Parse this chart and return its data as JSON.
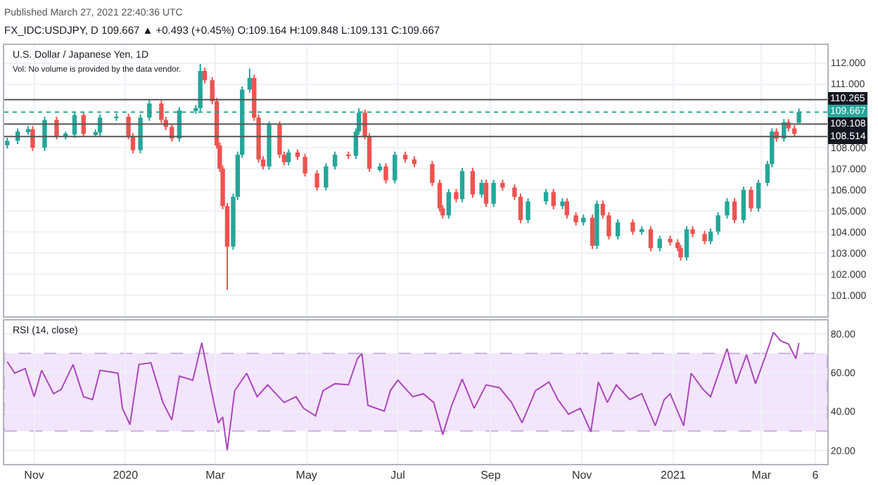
{
  "chart_data": [
    {
      "type": "candlestick",
      "title": "U.S. Dollar / Japanese Yen, 1D",
      "subtitle": "Vol: No volume is provided by the data vendor.",
      "annotations": [
        "Published March 27, 2021 22:40:36 UTC",
        "FX_IDC:USDJPY, D 109.667 ▲ +0.493 (+0.45%) O:109.164 H:109.848 L:109.131 C:109.667"
      ],
      "colors": [
        "#26a69a",
        "#26a69a",
        "#26a69a",
        "#ef5350",
        "#26a69a",
        "#ef5350",
        "#26a69a",
        "#26a69a",
        "#ef5350",
        "#26a69a",
        "#26a69a",
        "#26a69a",
        "#ef5350",
        "#ef5350",
        "#26a69a",
        "#26a69a",
        "#ef5350",
        "#ef5350",
        "#ef5350",
        "#26a69a",
        "#26a69a",
        "#26a69a",
        "#ef5350",
        "#ef5350",
        "#ef5350",
        "#ef5350",
        "#ef5350",
        "#ef5350",
        "#26a69a",
        "#26a69a",
        "#26a69a",
        "#26a69a",
        "#ef5350",
        "#ef5350",
        "#ef5350",
        "#26a69a",
        "#ef5350",
        "#ef5350",
        "#26a69a",
        "#ef5350",
        "#ef5350",
        "#ef5350",
        "#26a69a",
        "#26a69a",
        "#ef5350",
        "#26a69a",
        "#26a69a",
        "#ef5350",
        "#ef5350",
        "#26a69a",
        "#ef5350",
        "#26a69a",
        "#ef5350",
        "#ef5350",
        "#ef5350",
        "#ef5350",
        "#ef5350",
        "#26a69a",
        "#ef5350",
        "#26a69a",
        "#ef5350",
        "#26a69a",
        "#ef5350",
        "#26a69a",
        "#ef5350",
        "#ef5350",
        "#ef5350",
        "#26a69a",
        "#26a69a",
        "#ef5350",
        "#26a69a",
        "#ef5350",
        "#ef5350",
        "#26a69a",
        "#ef5350",
        "#26a69a",
        "#ef5350",
        "#ef5350",
        "#26a69a",
        "#ef5350",
        "#26a69a",
        "#ef5350",
        "#26a69a",
        "#ef5350",
        "#ef5350",
        "#ef5350",
        "#26a69a",
        "#ef5350",
        "#ef5350",
        "#26a69a",
        "#26a69a",
        "#26a69a",
        "#ef5350",
        "#26a69a",
        "#ef5350",
        "#26a69a",
        "#26a69a",
        "#26a69a",
        "#ef5350",
        "#26a69a",
        "#ef5350",
        "#ef5350",
        "#26a69a"
      ],
      "x": [
        "2019-10-14",
        "2019-10-21",
        "2019-10-28",
        "2019-10-31",
        "2019-11-08",
        "2019-11-16",
        "2019-11-22",
        "2019-11-28",
        "2019-12-04",
        "2019-12-12",
        "2019-12-15",
        "2019-12-26",
        "2020-01-03",
        "2020-01-06",
        "2020-01-11",
        "2020-01-17",
        "2020-01-25",
        "2020-01-28",
        "2020-02-01",
        "2020-02-06",
        "2020-02-17",
        "2020-02-20",
        "2020-02-23",
        "2020-02-28",
        "2020-03-02",
        "2020-03-04",
        "2020-03-06",
        "2020-03-09",
        "2020-03-13",
        "2020-03-16",
        "2020-03-19",
        "2020-03-24",
        "2020-03-27",
        "2020-03-30",
        "2020-04-02",
        "2020-04-06",
        "2020-04-13",
        "2020-04-16",
        "2020-04-19",
        "2020-04-25",
        "2020-04-30",
        "2020-05-08",
        "2020-05-14",
        "2020-05-20",
        "2020-05-29",
        "2020-06-03",
        "2020-06-05",
        "2020-06-09",
        "2020-06-12",
        "2020-06-19",
        "2020-06-23",
        "2020-06-29",
        "2020-07-06",
        "2020-07-12",
        "2020-07-24",
        "2020-07-29",
        "2020-07-31",
        "2020-08-04",
        "2020-08-09",
        "2020-08-13",
        "2020-08-20",
        "2020-08-26",
        "2020-08-29",
        "2020-09-03",
        "2020-09-09",
        "2020-09-17",
        "2020-09-21",
        "2020-09-26",
        "2020-10-08",
        "2020-10-13",
        "2020-10-19",
        "2020-10-22",
        "2020-10-28",
        "2020-11-02",
        "2020-11-08",
        "2020-11-11",
        "2020-11-15",
        "2020-11-19",
        "2020-11-25",
        "2020-12-05",
        "2020-12-11",
        "2020-12-17",
        "2020-12-23",
        "2020-12-30",
        "2021-01-04",
        "2021-01-06",
        "2021-01-10",
        "2021-01-14",
        "2021-01-22",
        "2021-01-26",
        "2021-01-31",
        "2021-02-06",
        "2021-02-11",
        "2021-02-17",
        "2021-02-22",
        "2021-02-27",
        "2021-03-05",
        "2021-03-08",
        "2021-03-11",
        "2021-03-16",
        "2021-03-19",
        "2021-03-23",
        "2021-03-26"
      ],
      "ohlc": [
        [
          108.1,
          108.46,
          107.95,
          108.31
        ],
        [
          108.31,
          108.9,
          108.16,
          108.75
        ],
        [
          108.75,
          109.01,
          108.6,
          108.86
        ],
        [
          108.86,
          109.01,
          107.83,
          107.98
        ],
        [
          107.98,
          109.45,
          107.83,
          109.3
        ],
        [
          109.3,
          109.45,
          108.38,
          108.53
        ],
        [
          108.53,
          108.75,
          108.38,
          108.6
        ],
        [
          108.6,
          109.68,
          108.45,
          109.53
        ],
        [
          109.53,
          109.68,
          108.49,
          108.64
        ],
        [
          108.64,
          108.85,
          108.49,
          108.7
        ],
        [
          108.7,
          109.56,
          108.55,
          109.41
        ],
        [
          109.41,
          109.6,
          109.26,
          109.45
        ],
        [
          109.45,
          109.6,
          108.38,
          108.53
        ],
        [
          108.53,
          108.68,
          107.72,
          107.87
        ],
        [
          107.87,
          109.56,
          107.72,
          109.41
        ],
        [
          109.41,
          110.23,
          109.26,
          110.08
        ],
        [
          110.08,
          110.23,
          109.15,
          109.3
        ],
        [
          109.3,
          109.45,
          108.82,
          108.97
        ],
        [
          108.97,
          109.12,
          108.27,
          108.42
        ],
        [
          108.42,
          109.9,
          108.27,
          109.75
        ],
        [
          109.75,
          110.01,
          109.6,
          109.86
        ],
        [
          109.86,
          111.95,
          109.71,
          111.62
        ],
        [
          111.62,
          111.77,
          111.03,
          111.18
        ],
        [
          111.18,
          111.33,
          110.04,
          110.19
        ],
        [
          110.19,
          110.34,
          107.94,
          108.09
        ],
        [
          108.09,
          108.24,
          106.84,
          106.99
        ],
        [
          106.99,
          107.14,
          105.07,
          105.22
        ],
        [
          105.22,
          105.37,
          101.25,
          103.3
        ],
        [
          103.3,
          105.81,
          103.15,
          105.66
        ],
        [
          105.66,
          107.8,
          105.51,
          107.65
        ],
        [
          107.65,
          110.89,
          107.5,
          110.74
        ],
        [
          110.74,
          111.73,
          110.59,
          111.29
        ],
        [
          111.29,
          111.44,
          109.26,
          109.41
        ],
        [
          109.41,
          109.56,
          107.28,
          107.43
        ],
        [
          107.43,
          107.58,
          106.95,
          107.1
        ],
        [
          107.1,
          109.23,
          106.95,
          109.08
        ],
        [
          109.08,
          109.23,
          107.5,
          107.65
        ],
        [
          107.65,
          107.8,
          107.15,
          107.3
        ],
        [
          107.3,
          107.91,
          107.15,
          107.76
        ],
        [
          107.76,
          107.91,
          107.4,
          107.55
        ],
        [
          107.55,
          107.7,
          106.62,
          106.77
        ],
        [
          106.77,
          106.92,
          105.95,
          106.1
        ],
        [
          106.1,
          107.25,
          105.95,
          107.1
        ],
        [
          107.1,
          107.8,
          106.95,
          107.65
        ],
        [
          107.65,
          107.8,
          107.45,
          107.6
        ],
        [
          107.6,
          108.9,
          107.45,
          108.75
        ],
        [
          108.75,
          109.85,
          108.6,
          109.64
        ],
        [
          109.64,
          109.79,
          108.38,
          108.53
        ],
        [
          108.53,
          108.68,
          106.84,
          106.99
        ],
        [
          106.99,
          107.25,
          106.84,
          107.1
        ],
        [
          107.1,
          107.25,
          106.29,
          106.44
        ],
        [
          106.44,
          107.8,
          106.29,
          107.65
        ],
        [
          107.65,
          107.8,
          107.28,
          107.43
        ],
        [
          107.43,
          107.58,
          107.06,
          107.21
        ],
        [
          107.21,
          107.36,
          106.17,
          106.32
        ],
        [
          106.32,
          106.47,
          104.96,
          105.11
        ],
        [
          105.11,
          105.26,
          104.63,
          104.78
        ],
        [
          104.78,
          106.03,
          104.63,
          105.88
        ],
        [
          105.88,
          106.03,
          105.4,
          105.55
        ],
        [
          105.55,
          107.03,
          105.4,
          106.88
        ],
        [
          106.88,
          107.03,
          105.62,
          105.77
        ],
        [
          105.77,
          106.47,
          105.62,
          106.32
        ],
        [
          106.32,
          106.47,
          105.18,
          105.33
        ],
        [
          105.33,
          106.47,
          105.18,
          106.32
        ],
        [
          106.32,
          106.47,
          105.95,
          106.1
        ],
        [
          106.1,
          106.25,
          105.51,
          105.66
        ],
        [
          105.66,
          105.81,
          104.41,
          104.56
        ],
        [
          104.56,
          105.59,
          104.41,
          105.44
        ],
        [
          105.44,
          106.03,
          105.29,
          105.88
        ],
        [
          105.88,
          106.03,
          105.07,
          105.22
        ],
        [
          105.22,
          105.59,
          105.07,
          105.44
        ],
        [
          105.44,
          105.59,
          104.63,
          104.78
        ],
        [
          104.78,
          104.93,
          104.3,
          104.45
        ],
        [
          104.45,
          104.82,
          104.3,
          104.67
        ],
        [
          104.67,
          104.82,
          103.19,
          103.34
        ],
        [
          103.34,
          105.48,
          103.19,
          105.33
        ],
        [
          105.33,
          105.48,
          104.63,
          104.78
        ],
        [
          104.78,
          104.93,
          103.64,
          103.79
        ],
        [
          103.79,
          104.6,
          103.64,
          104.45
        ],
        [
          104.45,
          104.6,
          103.86,
          104.01
        ],
        [
          104.01,
          104.27,
          103.86,
          104.12
        ],
        [
          104.12,
          104.27,
          103.08,
          103.23
        ],
        [
          103.23,
          103.82,
          103.08,
          103.67
        ],
        [
          103.67,
          103.82,
          103.35,
          103.5
        ],
        [
          103.5,
          103.65,
          103.08,
          103.23
        ],
        [
          103.23,
          103.38,
          102.64,
          102.79
        ],
        [
          102.79,
          104.27,
          102.64,
          104.12
        ],
        [
          104.12,
          104.27,
          103.75,
          103.9
        ],
        [
          103.9,
          104.05,
          103.41,
          103.56
        ],
        [
          103.56,
          104.16,
          103.41,
          104.01
        ],
        [
          104.01,
          104.93,
          103.86,
          104.78
        ],
        [
          104.78,
          105.59,
          104.63,
          105.44
        ],
        [
          105.44,
          105.59,
          104.41,
          104.56
        ],
        [
          104.56,
          106.14,
          104.41,
          105.99
        ],
        [
          105.99,
          106.14,
          104.96,
          105.11
        ],
        [
          105.11,
          106.47,
          104.96,
          106.32
        ],
        [
          106.32,
          107.36,
          106.17,
          107.21
        ],
        [
          107.21,
          108.9,
          107.06,
          108.75
        ],
        [
          108.75,
          108.9,
          108.27,
          108.42
        ],
        [
          108.42,
          109.34,
          108.27,
          109.19
        ],
        [
          109.19,
          109.34,
          108.75,
          108.9
        ],
        [
          108.9,
          109.05,
          108.49,
          108.64
        ],
        [
          109.164,
          109.848,
          109.131,
          109.667
        ]
      ],
      "xlim": [
        "2019-10-12",
        "2021-04-14"
      ],
      "xticks": [
        {
          "value": "2019-11-01",
          "label": null
        },
        {
          "value": "2020-01-01",
          "label": null
        },
        {
          "value": "2020-03-01",
          "label": null
        },
        {
          "value": "2020-05-01",
          "label": null
        },
        {
          "value": "2020-07-01",
          "label": null
        },
        {
          "value": "2020-09-01",
          "label": null
        },
        {
          "value": "2020-11-01",
          "label": null
        },
        {
          "value": "2021-01-01",
          "label": null
        },
        {
          "value": "2021-03-01",
          "label": null
        },
        {
          "value": "2021-04-06",
          "label": null
        }
      ],
      "ylim": [
        100.0,
        112.85
      ],
      "yticks": [
        {
          "value": 101,
          "label": "101.000"
        },
        {
          "value": 102,
          "label": "102.000"
        },
        {
          "value": 103,
          "label": "103.000"
        },
        {
          "value": 104,
          "label": "104.000"
        },
        {
          "value": 105,
          "label": "105.000"
        },
        {
          "value": 106,
          "label": "106.000"
        },
        {
          "value": 107,
          "label": "107.000"
        },
        {
          "value": 108,
          "label": "108.000"
        },
        {
          "value": 111,
          "label": "111.000"
        },
        {
          "value": 112,
          "label": "112.000"
        }
      ],
      "ref_lines": [
        {
          "axis": "y",
          "value": 110.265,
          "label": "110.265",
          "color": "#555555"
        },
        {
          "axis": "y",
          "value": 109.667,
          "label": "109.667",
          "color": "#26a69a",
          "line_style": "dotted"
        },
        {
          "axis": "y",
          "value": 109.108,
          "label": "109.108",
          "color": "#555555"
        },
        {
          "axis": "y",
          "value": 108.514,
          "label": "108.514",
          "color": "#555555"
        }
      ],
      "grid": true,
      "tick_labels": "y"
    },
    {
      "type": "line",
      "title": "RSI (14, close)",
      "x": [
        "2019-10-14",
        "2019-10-19",
        "2019-10-26",
        "2019-11-01",
        "2019-11-06",
        "2019-11-14",
        "2019-11-19",
        "2019-11-27",
        "2019-12-04",
        "2019-12-10",
        "2019-12-15",
        "2019-12-27",
        "2019-12-30",
        "2020-01-04",
        "2020-01-10",
        "2020-01-18",
        "2020-01-26",
        "2020-02-01",
        "2020-02-06",
        "2020-02-15",
        "2020-02-21",
        "2020-02-27",
        "2020-03-03",
        "2020-03-06",
        "2020-03-09",
        "2020-03-14",
        "2020-03-22",
        "2020-03-29",
        "2020-04-05",
        "2020-04-16",
        "2020-04-24",
        "2020-04-29",
        "2020-05-07",
        "2020-05-12",
        "2020-05-20",
        "2020-05-29",
        "2020-06-04",
        "2020-06-07",
        "2020-06-11",
        "2020-06-22",
        "2020-06-26",
        "2020-07-01",
        "2020-07-11",
        "2020-07-18",
        "2020-07-25",
        "2020-07-31",
        "2020-08-06",
        "2020-08-13",
        "2020-08-21",
        "2020-08-29",
        "2020-09-07",
        "2020-09-15",
        "2020-09-22",
        "2020-10-01",
        "2020-10-10",
        "2020-10-16",
        "2020-10-23",
        "2020-10-31",
        "2020-11-07",
        "2020-11-12",
        "2020-11-18",
        "2020-11-24",
        "2020-12-03",
        "2020-12-11",
        "2020-12-20",
        "2020-12-26",
        "2020-12-30",
        "2021-01-08",
        "2021-01-13",
        "2021-01-21",
        "2021-01-26",
        "2021-02-06",
        "2021-02-12",
        "2021-02-19",
        "2021-02-25",
        "2021-03-04",
        "2021-03-09",
        "2021-03-14",
        "2021-03-19",
        "2021-03-24",
        "2021-03-26"
      ],
      "series": [
        {
          "color": "#ab47bc",
          "values": [
            65.8,
            59.8,
            62.2,
            47.7,
            61.3,
            49.2,
            51.4,
            64.3,
            47.7,
            46.2,
            61.3,
            59.8,
            41.7,
            33.3,
            64.3,
            65.2,
            44.7,
            35.7,
            58.3,
            56.2,
            75.5,
            52.3,
            34.2,
            37.2,
            20.0,
            50.8,
            59.8,
            47.7,
            53.8,
            44.7,
            47.7,
            41.7,
            37.8,
            50.8,
            54.4,
            53.8,
            67.3,
            70.0,
            43.2,
            40.2,
            50.8,
            56.2,
            47.7,
            49.2,
            44.7,
            28.1,
            43.2,
            56.8,
            41.7,
            53.8,
            52.3,
            44.7,
            34.2,
            50.8,
            55.3,
            46.2,
            38.7,
            41.7,
            29.6,
            55.3,
            44.7,
            53.8,
            46.2,
            49.2,
            32.7,
            46.2,
            49.2,
            32.7,
            59.8,
            51.4,
            47.7,
            72.5,
            54.4,
            69.4,
            54.4,
            69.4,
            80.9,
            76.4,
            74.9,
            67.3,
            75.5
          ]
        }
      ],
      "xlim": [
        "2019-10-12",
        "2021-04-14"
      ],
      "xticks": [
        {
          "value": "2019-11-01",
          "label": "Nov"
        },
        {
          "value": "2020-01-01",
          "label": "2020"
        },
        {
          "value": "2020-03-01",
          "label": "Mar"
        },
        {
          "value": "2020-05-01",
          "label": "May"
        },
        {
          "value": "2020-07-01",
          "label": "Jul"
        },
        {
          "value": "2020-09-01",
          "label": "Sep"
        },
        {
          "value": "2020-11-01",
          "label": "Nov"
        },
        {
          "value": "2021-01-01",
          "label": "2021"
        },
        {
          "value": "2021-03-01",
          "label": "Mar"
        },
        {
          "value": "2021-04-06",
          "label": "6"
        }
      ],
      "ylim": [
        13,
        87
      ],
      "yticks": [
        {
          "value": 20,
          "label": "20.00"
        },
        {
          "value": 40,
          "label": "40.00"
        },
        {
          "value": 60,
          "label": "60.00"
        },
        {
          "value": 80,
          "label": "80.00"
        }
      ],
      "bands": [
        {
          "axis": "y",
          "from": 30,
          "to": 70,
          "color": "#f3e5fc"
        }
      ],
      "grid": true
    }
  ]
}
